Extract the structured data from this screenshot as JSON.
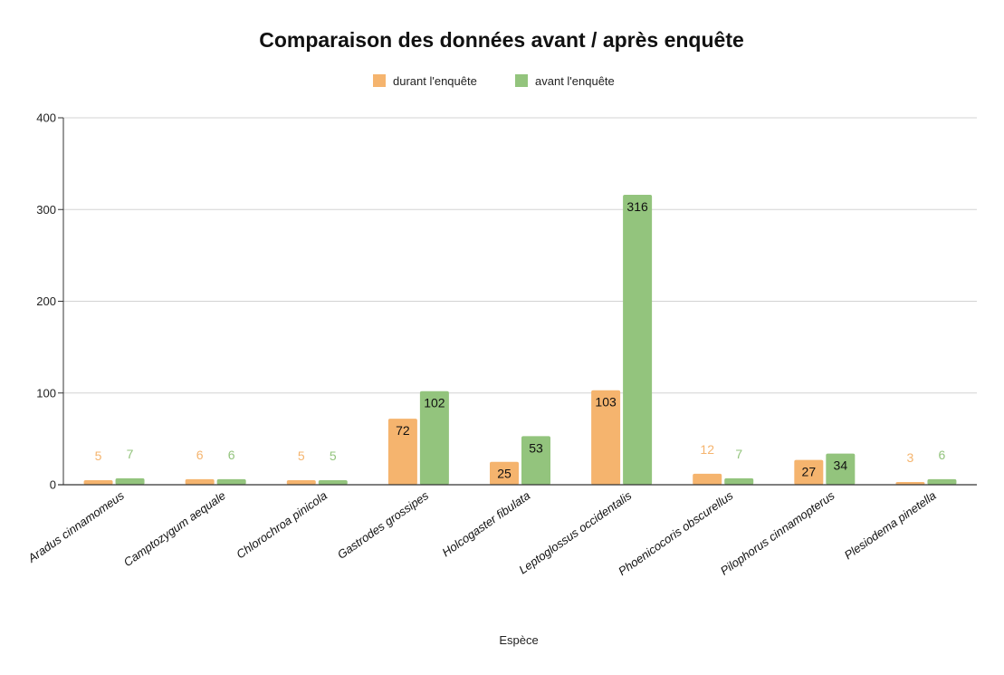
{
  "chart_data": {
    "type": "bar",
    "title": "Comparaison des données avant / après enquête",
    "xlabel": "Espèce",
    "ylabel": "",
    "ylim": [
      0,
      400
    ],
    "yticks": [
      0,
      100,
      200,
      300,
      400
    ],
    "grid": true,
    "legend_position": "top-center",
    "categories": [
      "Aradus cinnamomeus",
      "Camptozygum aequale",
      "Chlorochroa pinicola",
      "Gastrodes grossipes",
      "Holcogaster fibulata",
      "Leptoglossus occidentalis",
      "Phoenicocoris obscurellus",
      "Pilophorus cinnamopterus",
      "Plesiodema pinetella"
    ],
    "series": [
      {
        "name": "durant l'enquête",
        "color": "#F5B46E",
        "values": [
          5,
          6,
          5,
          72,
          25,
          103,
          12,
          27,
          3
        ]
      },
      {
        "name": "avant l'enquête",
        "color": "#93C47D",
        "values": [
          7,
          6,
          5,
          102,
          53,
          316,
          7,
          34,
          6
        ]
      }
    ]
  }
}
